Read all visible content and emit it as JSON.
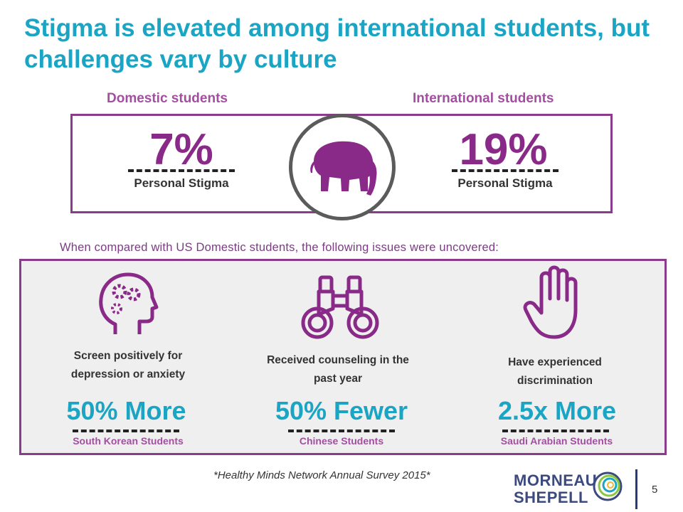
{
  "slide": {
    "title": "Stigma is elevated among international students, but challenges vary by culture",
    "page_number": "5"
  },
  "comparison": {
    "domestic": {
      "heading": "Domestic students",
      "value": "7%",
      "label": "Personal Stigma"
    },
    "international": {
      "heading": "International students",
      "value": "19%",
      "label": "Personal Stigma"
    },
    "icon": "elephant-icon"
  },
  "issues": {
    "intro": "When compared with US Domestic students, the following issues were uncovered:",
    "items": [
      {
        "icon": "head-gears-icon",
        "description": "Screen positively for depression or anxiety",
        "value": "50% More",
        "group": "South Korean Students"
      },
      {
        "icon": "binoculars-icon",
        "description": "Received counseling in the past year",
        "value": "50% Fewer",
        "group": "Chinese Students"
      },
      {
        "icon": "raised-hand-icon",
        "description": "Have experienced discrimination",
        "value": "2.5x More",
        "group": "Saudi Arabian Students"
      }
    ]
  },
  "footer": {
    "source": "*Healthy Minds Network Annual Survey 2015*",
    "logo_line1": "MORNEAU",
    "logo_line2": "SHEPELL"
  },
  "colors": {
    "title": "#1aa5c4",
    "accent_purple": "#8a3b8c",
    "value_blue": "#1aa5c4",
    "logo_navy": "#3c4a7d"
  }
}
